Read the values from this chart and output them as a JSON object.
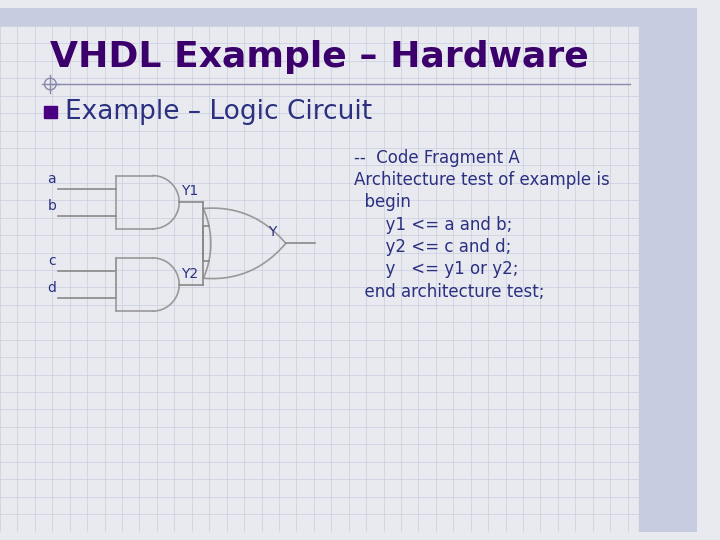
{
  "title": "VHDL Example – Hardware",
  "subtitle": "Example – Logic Circuit",
  "bg_color": "#e8eaf0",
  "grid_color": "#c8cce0",
  "title_color": "#3b006b",
  "subtitle_color": "#2b3080",
  "body_color": "#2b3080",
  "diamond_color": "#4b0082",
  "gate_color": "#999999",
  "line_color": "#888888",
  "code_lines": [
    "--  Code Fragment A",
    "Architecture test of example is",
    "  begin",
    "      y1 <= a and b;",
    "      y2 <= c and d;",
    "      y   <= y1 or y2;",
    "  end architecture test;"
  ],
  "title_fontsize": 26,
  "subtitle_fontsize": 19,
  "code_fontsize": 12,
  "label_fontsize": 10,
  "top_bar_color": "#c8cce0",
  "right_bar_color": "#c8cce0",
  "accent_line_color": "#8888aa",
  "circle_color": "#8888aa"
}
